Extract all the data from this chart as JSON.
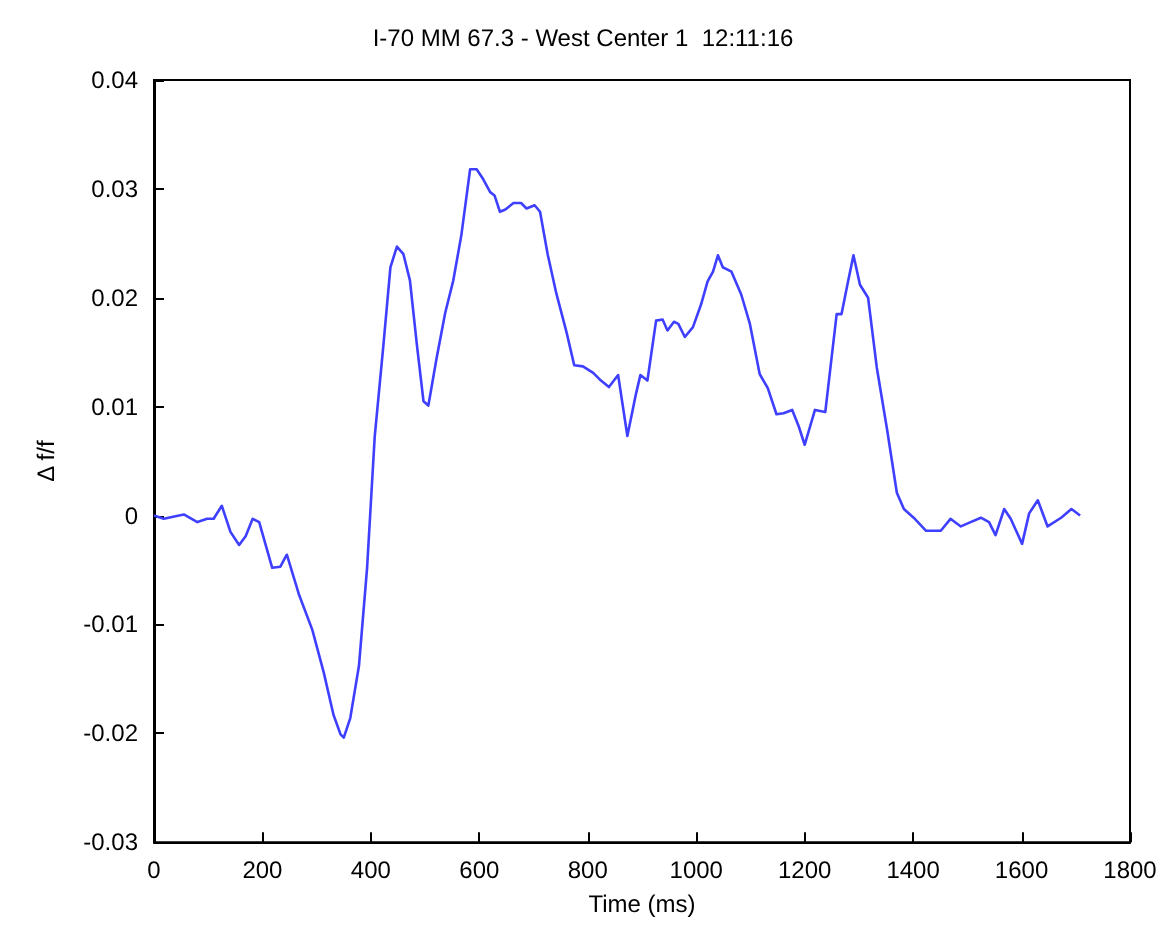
{
  "chart_data": {
    "type": "line",
    "title": "I-70 MM 67.3 - West Center 1  12:11:16",
    "xlabel": "Time (ms)",
    "ylabel": "Δ f/f",
    "x": [
      0,
      18,
      55,
      80,
      98,
      110,
      125,
      141,
      157,
      169,
      182,
      194,
      218,
      233,
      245,
      267,
      292,
      313,
      331,
      344,
      350,
      362,
      378,
      393,
      407,
      423,
      436,
      448,
      460,
      472,
      485,
      497,
      506,
      521,
      537,
      552,
      567,
      583,
      595,
      607,
      620,
      628,
      638,
      648,
      663,
      677,
      687,
      702,
      712,
      726,
      742,
      761,
      775,
      791,
      810,
      822,
      839,
      856,
      873,
      889,
      897,
      910,
      926,
      938,
      947,
      959,
      967,
      979,
      994,
      1009,
      1021,
      1031,
      1040,
      1049,
      1065,
      1083,
      1099,
      1117,
      1132,
      1148,
      1161,
      1177,
      1189,
      1200,
      1219,
      1238,
      1259,
      1268,
      1280,
      1290,
      1302,
      1317,
      1333,
      1352,
      1370,
      1383,
      1401,
      1424,
      1451,
      1469,
      1488,
      1506,
      1525,
      1540,
      1552,
      1568,
      1580,
      1601,
      1614,
      1630,
      1648,
      1673,
      1692,
      1708
    ],
    "series": [
      {
        "color": "#3f3fff",
        "values": [
          0,
          -0.0003,
          0.0001,
          -0.0006,
          -0.0003,
          -0.0003,
          0.0009,
          -0.0015,
          -0.0027,
          -0.0019,
          -0.0003,
          -0.0006,
          -0.0048,
          -0.0047,
          -0.0036,
          -0.0072,
          -0.0105,
          -0.0144,
          -0.0183,
          -0.0201,
          -0.0204,
          -0.0186,
          -0.0138,
          -0.0048,
          0.0072,
          0.0156,
          0.0228,
          0.0247,
          0.024,
          0.0216,
          0.0156,
          0.0105,
          0.0101,
          0.0144,
          0.0186,
          0.0216,
          0.0258,
          0.0318,
          0.0318,
          0.0309,
          0.0297,
          0.0294,
          0.0279,
          0.0281,
          0.0287,
          0.0287,
          0.0282,
          0.0285,
          0.0279,
          0.024,
          0.0204,
          0.0168,
          0.0138,
          0.0137,
          0.0131,
          0.0125,
          0.0118,
          0.0129,
          0.0073,
          0.0112,
          0.0129,
          0.0124,
          0.0179,
          0.018,
          0.017,
          0.0178,
          0.0176,
          0.0164,
          0.0173,
          0.0194,
          0.0215,
          0.0224,
          0.0239,
          0.0228,
          0.0224,
          0.0203,
          0.0176,
          0.013,
          0.0117,
          0.0093,
          0.0094,
          0.0097,
          0.0082,
          0.0065,
          0.0097,
          0.0095,
          0.0185,
          0.0185,
          0.0215,
          0.0239,
          0.0212,
          0.02,
          0.0136,
          0.0079,
          0.0021,
          0.0006,
          -0.0002,
          -0.0014,
          -0.0014,
          -0.0003,
          -0.001,
          -0.0006,
          -0.0002,
          -0.0006,
          -0.0018,
          0.0006,
          -0.0003,
          -0.0026,
          0.0002,
          0.0014,
          -0.001,
          -0.0002,
          0.0006,
          0
        ]
      }
    ],
    "xlim": [
      0,
      1800
    ],
    "xticks": [
      0,
      200,
      400,
      600,
      800,
      1000,
      1200,
      1400,
      1600,
      1800
    ],
    "ylim": [
      -0.03,
      0.04
    ],
    "yticks": [
      -0.03,
      -0.02,
      -0.01,
      0,
      0.01,
      0.02,
      0.03,
      0.04
    ],
    "grid": false,
    "marker": "none",
    "line_style": "solid"
  }
}
